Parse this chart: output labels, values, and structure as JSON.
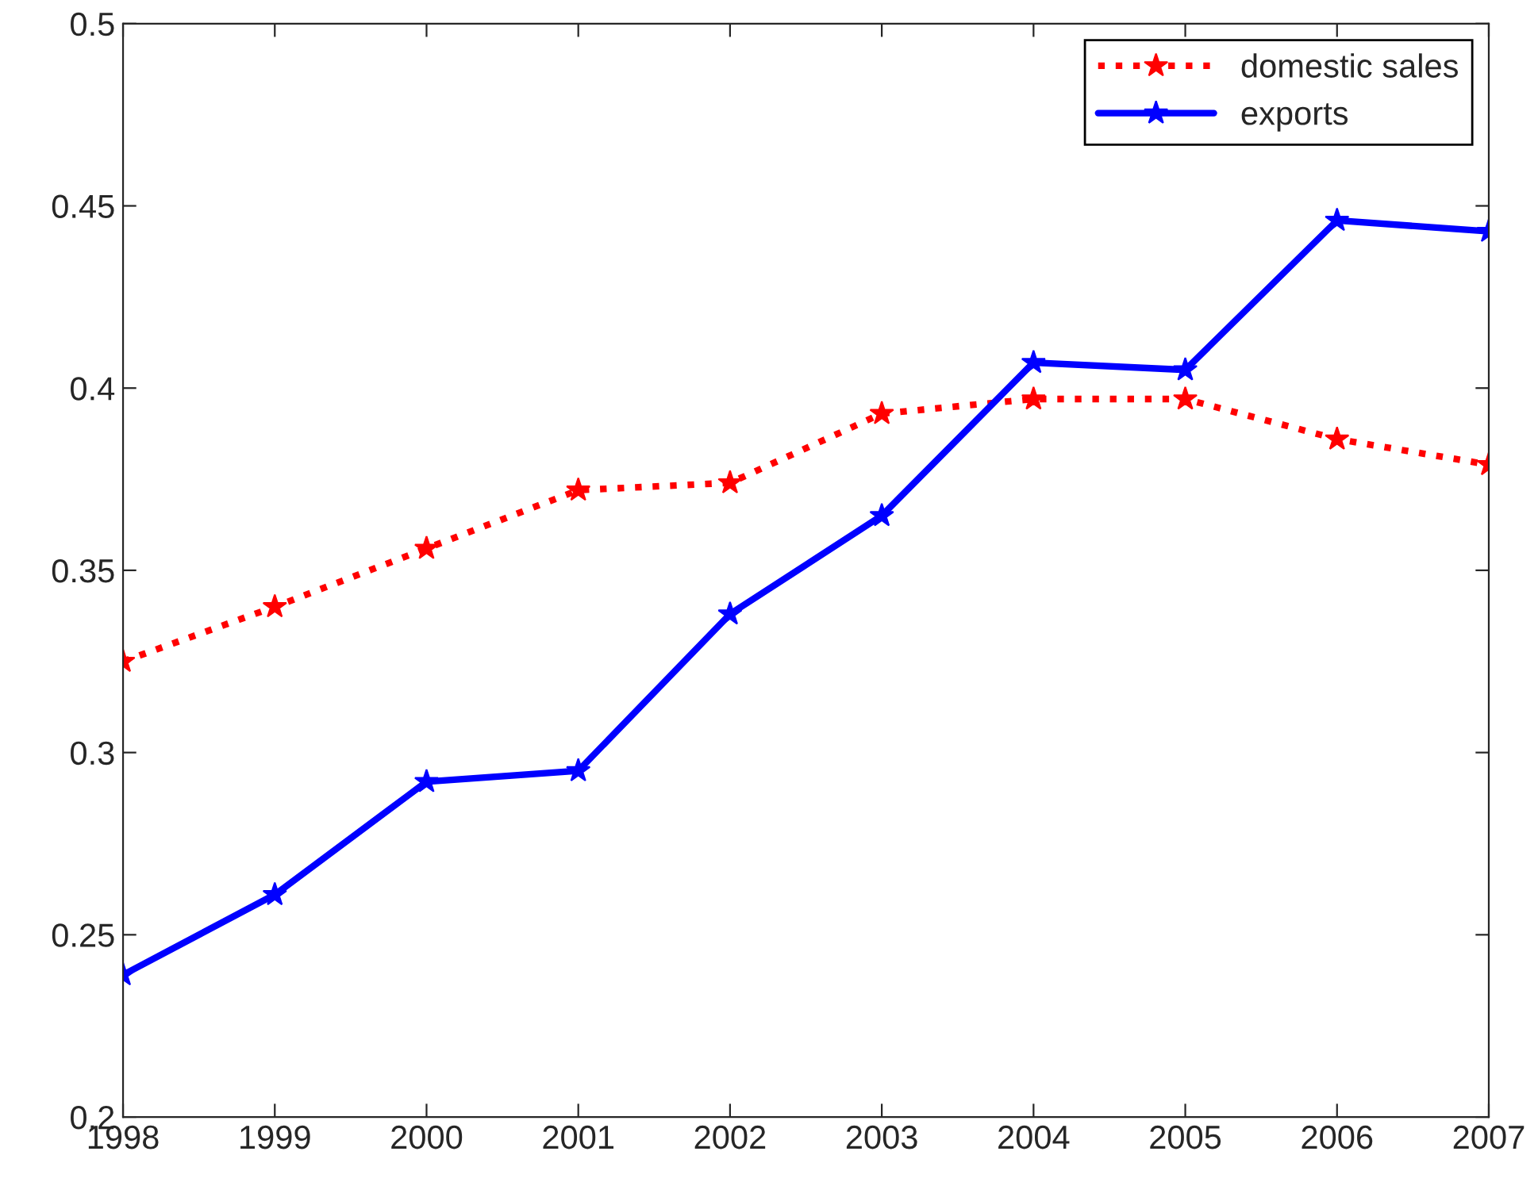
{
  "chart_data": {
    "type": "line",
    "x": [
      1998,
      1999,
      2000,
      2001,
      2002,
      2003,
      2004,
      2005,
      2006,
      2007
    ],
    "series": [
      {
        "name": "domestic sales",
        "color": "#ff0000",
        "line_style": "dotted",
        "values": [
          0.325,
          0.34,
          0.356,
          0.372,
          0.374,
          0.393,
          0.397,
          0.397,
          0.386,
          0.379
        ]
      },
      {
        "name": "exports",
        "color": "#0000ff",
        "line_style": "solid",
        "values": [
          0.239,
          0.261,
          0.292,
          0.295,
          0.338,
          0.365,
          0.407,
          0.405,
          0.446,
          0.443
        ]
      }
    ],
    "xlim": [
      1998,
      2007
    ],
    "xticks": [
      1998,
      1999,
      2000,
      2001,
      2002,
      2003,
      2004,
      2005,
      2006,
      2007
    ],
    "ylim": [
      0.2,
      0.5
    ],
    "yticks": [
      0.2,
      0.25,
      0.3,
      0.35,
      0.4,
      0.45,
      0.5
    ],
    "marker": "star",
    "grid": false,
    "legend": "top right"
  }
}
